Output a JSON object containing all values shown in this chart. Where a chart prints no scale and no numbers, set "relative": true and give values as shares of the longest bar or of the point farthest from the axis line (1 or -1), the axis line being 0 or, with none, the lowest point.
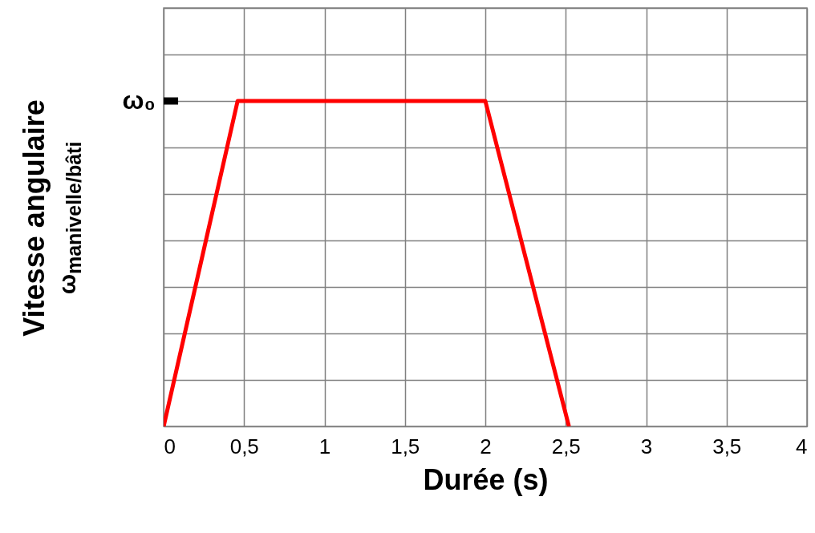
{
  "chart_data": {
    "type": "line",
    "xlabel": "Durée (s)",
    "ylabel": "Vitesse angulaire\nω$_{manivelle/bâti}$",
    "x": [
      0,
      0.46,
      2.0,
      2.52
    ],
    "series": [
      {
        "color": "#ff0000",
        "values": [
          0,
          1,
          1,
          0
        ]
      }
    ],
    "relative": true,
    "xlim": [
      0,
      4
    ],
    "xticks": [
      0,
      {
        "value": 0.5,
        "label": "0,5"
      },
      1,
      {
        "value": 1.5,
        "label": "1,5"
      },
      2,
      {
        "value": 2.5,
        "label": "2,5"
      },
      3,
      {
        "value": 3.5,
        "label": "3,5"
      },
      4
    ],
    "grid": true,
    "marker": "none",
    "line_style": "solid",
    "annotations": [
      "ω₀"
    ]
  }
}
